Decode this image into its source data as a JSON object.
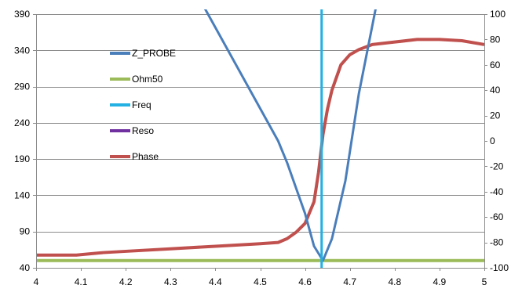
{
  "chart_data": {
    "type": "line",
    "title": "",
    "xlabel": "",
    "ylabel": "",
    "y2label": "",
    "xlim": [
      4.0,
      5.0
    ],
    "ylim": [
      40,
      390
    ],
    "y2lim": [
      -100,
      100
    ],
    "x_ticks": [
      "4",
      "4.1",
      "4.2",
      "4.3",
      "4.4",
      "4.5",
      "4.6",
      "4.7",
      "4.8",
      "4.9",
      "5"
    ],
    "y_ticks": [
      "40",
      "90",
      "140",
      "190",
      "240",
      "290",
      "340",
      "390"
    ],
    "y2_ticks": [
      "-100",
      "-80",
      "-60",
      "-40",
      "-20",
      "0",
      "20",
      "40",
      "60",
      "80",
      "100"
    ],
    "grid": true,
    "legend_position": "left-inside",
    "series": [
      {
        "name": "Z_PROBE",
        "color": "#4a7ebb",
        "axis": "left",
        "x": [
          4.37,
          4.54,
          4.56,
          4.6,
          4.62,
          4.64,
          4.66,
          4.69,
          4.72,
          4.76
        ],
        "y": [
          405,
          215,
          185,
          115,
          70,
          50,
          80,
          160,
          280,
          405
        ]
      },
      {
        "name": "Ohm50",
        "color": "#9bbb59",
        "axis": "left",
        "x": [
          4.0,
          5.0
        ],
        "y": [
          50,
          50
        ]
      },
      {
        "name": "Freq",
        "color": "#23b0e3",
        "axis": "left",
        "x": [
          4.637,
          4.637
        ],
        "y": [
          40,
          405
        ]
      },
      {
        "name": "Reso",
        "color": "#7030a0",
        "axis": "left",
        "x": [],
        "y": []
      },
      {
        "name": "Phase",
        "color": "#c0504d",
        "axis": "right",
        "x": [
          4.0,
          4.09,
          4.15,
          4.2,
          4.3,
          4.4,
          4.5,
          4.54,
          4.56,
          4.58,
          4.6,
          4.62,
          4.63,
          4.64,
          4.65,
          4.66,
          4.68,
          4.7,
          4.72,
          4.75,
          4.8,
          4.85,
          4.9,
          4.95,
          5.0
        ],
        "y": [
          -90,
          -90,
          -88,
          -87,
          -85,
          -83,
          -81,
          -80,
          -77,
          -72,
          -65,
          -48,
          -25,
          5,
          25,
          40,
          60,
          68,
          72,
          76,
          78,
          80,
          80,
          79,
          76
        ]
      }
    ]
  }
}
